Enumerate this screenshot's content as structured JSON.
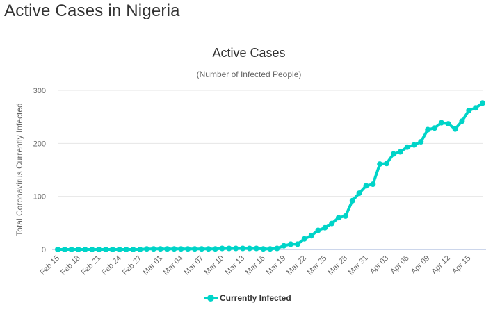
{
  "page": {
    "heading": "Active Cases in Nigeria"
  },
  "colors": {
    "series": "#00D4C8",
    "grid": "#E6E6E6",
    "axis": "#CCD6EB",
    "text": "#666666"
  },
  "chart_data": {
    "type": "line",
    "title": "Active Cases",
    "subtitle": "(Number of Infected People)",
    "xlabel": "",
    "ylabel": "Total Coronavirus Currently Infected",
    "ylim": [
      0,
      300
    ],
    "yticks": [
      0,
      100,
      200,
      300
    ],
    "grid": true,
    "legend_position": "bottom-center",
    "x_tick_labels": [
      "Feb 15",
      "Feb 18",
      "Feb 21",
      "Feb 24",
      "Feb 27",
      "Mar 01",
      "Mar 04",
      "Mar 07",
      "Mar 10",
      "Mar 13",
      "Mar 16",
      "Mar 19",
      "Mar 22",
      "Mar 25",
      "Mar 28",
      "Mar 31",
      "Apr 03",
      "Apr 06",
      "Apr 09",
      "Apr 12",
      "Apr 15"
    ],
    "x": [
      "Feb 15",
      "Feb 16",
      "Feb 17",
      "Feb 18",
      "Feb 19",
      "Feb 20",
      "Feb 21",
      "Feb 22",
      "Feb 23",
      "Feb 24",
      "Feb 25",
      "Feb 26",
      "Feb 27",
      "Feb 28",
      "Feb 29",
      "Mar 01",
      "Mar 02",
      "Mar 03",
      "Mar 04",
      "Mar 05",
      "Mar 06",
      "Mar 07",
      "Mar 08",
      "Mar 09",
      "Mar 10",
      "Mar 11",
      "Mar 12",
      "Mar 13",
      "Mar 14",
      "Mar 15",
      "Mar 16",
      "Mar 17",
      "Mar 18",
      "Mar 19",
      "Mar 20",
      "Mar 21",
      "Mar 22",
      "Mar 23",
      "Mar 24",
      "Mar 25",
      "Mar 26",
      "Mar 27",
      "Mar 28",
      "Mar 29",
      "Mar 30",
      "Mar 31",
      "Apr 01",
      "Apr 02",
      "Apr 03",
      "Apr 04",
      "Apr 05",
      "Apr 06",
      "Apr 07",
      "Apr 08",
      "Apr 09",
      "Apr 10",
      "Apr 11",
      "Apr 12",
      "Apr 13",
      "Apr 14",
      "Apr 15",
      "Apr 16",
      "Apr 17"
    ],
    "series": [
      {
        "name": "Currently Infected",
        "values": [
          0,
          0,
          0,
          0,
          0,
          0,
          0,
          0,
          0,
          0,
          0,
          0,
          0,
          1,
          1,
          1,
          1,
          1,
          1,
          1,
          1,
          1,
          1,
          1,
          2,
          2,
          2,
          2,
          2,
          2,
          1,
          1,
          2,
          7,
          10,
          10,
          20,
          26,
          36,
          41,
          49,
          60,
          63,
          92,
          106,
          120,
          123,
          161,
          162,
          180,
          184,
          193,
          197,
          203,
          226,
          229,
          239,
          237,
          227,
          242,
          262,
          267,
          276
        ]
      }
    ]
  }
}
